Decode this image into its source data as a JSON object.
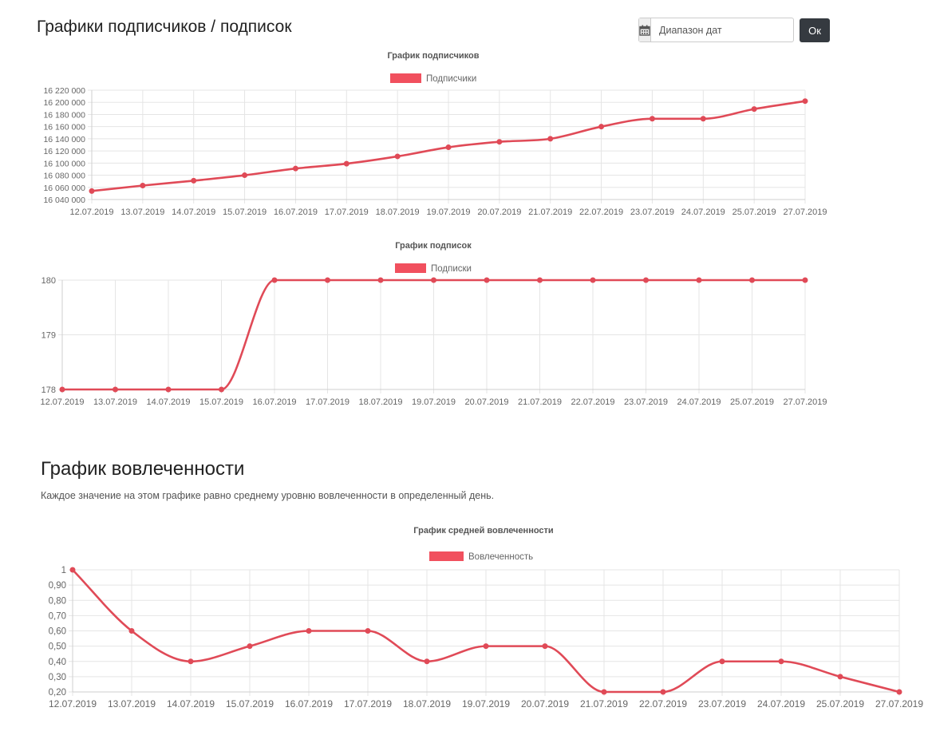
{
  "header": {
    "title": "Графики подписчиков / подписок",
    "date_placeholder": "Диапазон дат",
    "date_icon": "calendar-icon",
    "ok_label": "Ок"
  },
  "engagement": {
    "title": "График вовлеченности",
    "description": "Каждое значение на этом графике равно среднему уровню вовлеченности в определенный день."
  },
  "colors": {
    "series": "#e04a57",
    "legend_box": "#f1505e",
    "grid": "#e5e5e5",
    "tick_text": "#666666",
    "title_text": "#555555"
  },
  "chart_data": [
    {
      "type": "line",
      "title": "График подписчиков",
      "categories": [
        "12.07.2019",
        "13.07.2019",
        "14.07.2019",
        "15.07.2019",
        "16.07.2019",
        "17.07.2019",
        "18.07.2019",
        "19.07.2019",
        "20.07.2019",
        "21.07.2019",
        "22.07.2019",
        "23.07.2019",
        "24.07.2019",
        "25.07.2019",
        "27.07.2019"
      ],
      "series": [
        {
          "name": "Подписчики",
          "values": [
            16054000,
            16063000,
            16071000,
            16080000,
            16091000,
            16099000,
            16111000,
            16126000,
            16135000,
            16140000,
            16160000,
            16173000,
            16173000,
            16189000,
            16202000
          ]
        }
      ],
      "ylim": [
        16040000,
        16220000
      ],
      "yticks": [
        "16 040 000",
        "16 060 000",
        "16 080 000",
        "16 100 000",
        "16 120 000",
        "16 140 000",
        "16 160 000",
        "16 180 000",
        "16 200 000",
        "16 220 000"
      ],
      "legend": "top",
      "grid": true
    },
    {
      "type": "line",
      "title": "График подписок",
      "categories": [
        "12.07.2019",
        "13.07.2019",
        "14.07.2019",
        "15.07.2019",
        "16.07.2019",
        "17.07.2019",
        "18.07.2019",
        "19.07.2019",
        "20.07.2019",
        "21.07.2019",
        "22.07.2019",
        "23.07.2019",
        "24.07.2019",
        "25.07.2019",
        "27.07.2019"
      ],
      "series": [
        {
          "name": "Подписки",
          "values": [
            178,
            178,
            178,
            178,
            180,
            180,
            180,
            180,
            180,
            180,
            180,
            180,
            180,
            180,
            180
          ]
        }
      ],
      "ylim": [
        178,
        180
      ],
      "yticks": [
        "178",
        "179",
        "180"
      ],
      "legend": "top",
      "grid": true
    },
    {
      "type": "line",
      "title": "График средней вовлеченности",
      "categories": [
        "12.07.2019",
        "13.07.2019",
        "14.07.2019",
        "15.07.2019",
        "16.07.2019",
        "17.07.2019",
        "18.07.2019",
        "19.07.2019",
        "20.07.2019",
        "21.07.2019",
        "22.07.2019",
        "23.07.2019",
        "24.07.2019",
        "25.07.2019",
        "27.07.2019"
      ],
      "series": [
        {
          "name": "Вовлеченность",
          "values": [
            1,
            0.6,
            0.4,
            0.5,
            0.6,
            0.6,
            0.4,
            0.5,
            0.5,
            0.2,
            0.2,
            0.4,
            0.4,
            0.3,
            0.2
          ]
        }
      ],
      "ylim": [
        0.2,
        1
      ],
      "yticks": [
        "0,20",
        "0,30",
        "0,40",
        "0,50",
        "0,60",
        "0,70",
        "0,80",
        "0,90",
        "1"
      ],
      "legend": "top",
      "grid": true
    }
  ]
}
